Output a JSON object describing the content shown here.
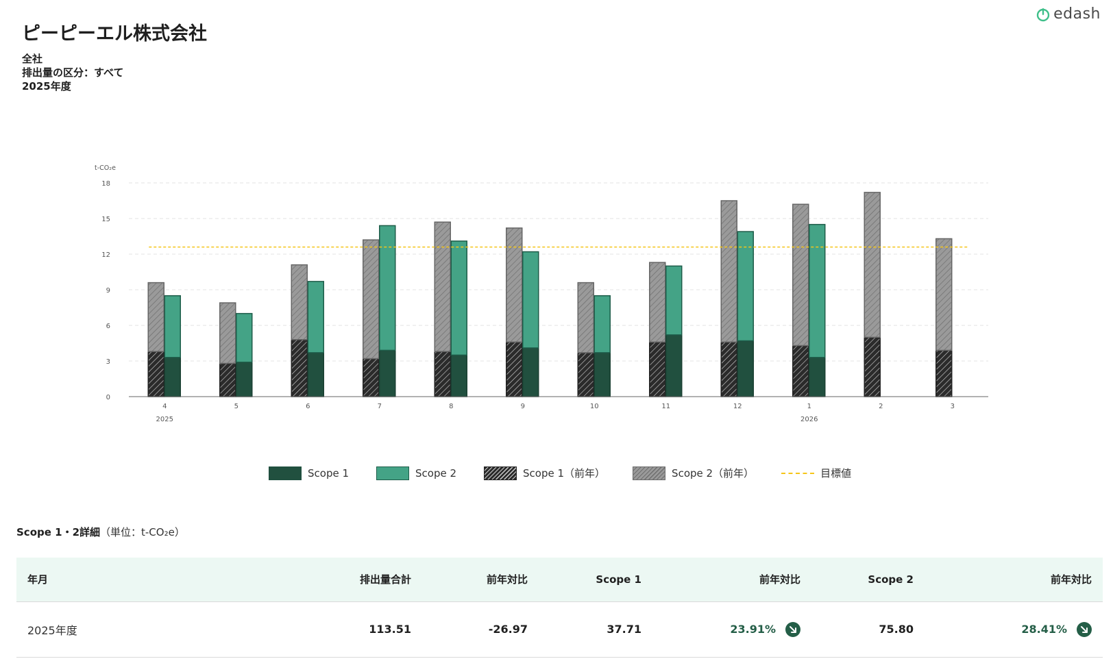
{
  "brand": {
    "name": "edash",
    "icon": "power-leaf-icon",
    "color": "#3fbf8a"
  },
  "header": {
    "company": "ピーピーエル株式会社",
    "scope_label": "全社",
    "category_label": "排出量の区分：すべて",
    "year_label": "2025年度"
  },
  "chart_data": {
    "type": "bar",
    "ylabel": "t-CO₂e",
    "ylim": [
      0,
      18
    ],
    "yticks": [
      0,
      3,
      6,
      9,
      12,
      15,
      18
    ],
    "grid": true,
    "categories": [
      "4",
      "5",
      "6",
      "7",
      "8",
      "9",
      "10",
      "11",
      "12",
      "1",
      "2",
      "3"
    ],
    "year_labels": [
      {
        "index": 0,
        "label": "2025"
      },
      {
        "index": 9,
        "label": "2026"
      }
    ],
    "target": 12.6,
    "current": {
      "scope1": [
        3.3,
        2.9,
        3.7,
        3.9,
        3.5,
        4.1,
        3.7,
        5.2,
        4.7,
        3.3,
        null,
        null
      ],
      "scope2": [
        5.2,
        4.1,
        6.0,
        10.5,
        9.6,
        8.1,
        4.8,
        5.8,
        9.2,
        11.2,
        null,
        null
      ]
    },
    "previous": {
      "scope1": [
        3.8,
        2.8,
        4.8,
        3.2,
        3.8,
        4.6,
        3.7,
        4.6,
        4.6,
        4.3,
        5.0,
        3.9
      ],
      "scope2": [
        5.8,
        5.1,
        6.3,
        10.0,
        10.9,
        9.6,
        5.9,
        6.7,
        11.9,
        11.9,
        12.2,
        9.4
      ]
    },
    "colors": {
      "scope1": "#21503f",
      "scope2": "#44a386",
      "prev_s1": "#2b2b2b",
      "prev_s2": "#9a9a9a",
      "target": "#f5c518"
    }
  },
  "legend": {
    "scope1": "Scope 1",
    "scope2": "Scope 2",
    "scope1_prev": "Scope 1（前年）",
    "scope2_prev": "Scope 2（前年）",
    "target": "目標値"
  },
  "table": {
    "title_bold": "Scope 1・2詳細",
    "title_unit": "（単位：t-CO₂e）",
    "headers": [
      "年月",
      "排出量合計",
      "前年対比",
      "Scope 1",
      "前年対比",
      "Scope 2",
      "前年対比"
    ],
    "rows": [
      {
        "period": "2025年度",
        "total": "113.51",
        "total_yoy": "-26.97",
        "scope1": "37.71",
        "scope1_yoy": "23.91%",
        "scope2": "75.80",
        "scope2_yoy": "28.41%"
      }
    ]
  }
}
